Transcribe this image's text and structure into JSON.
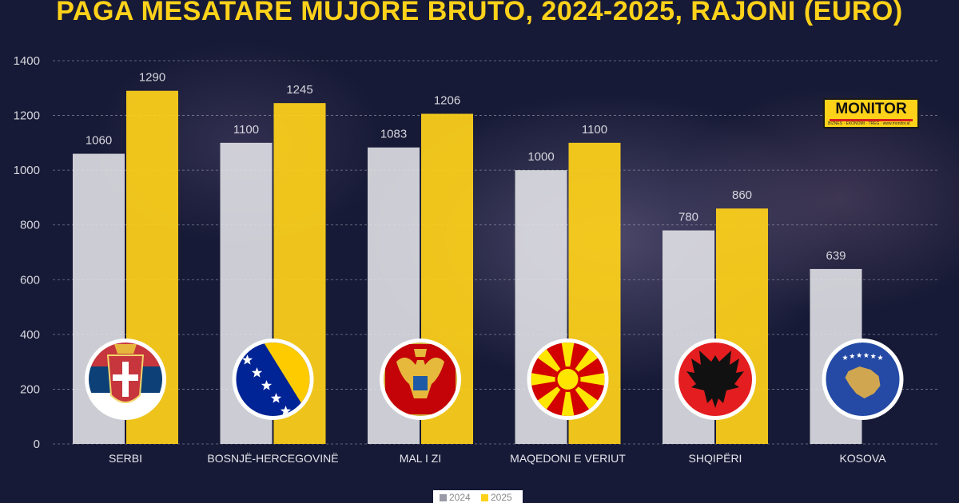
{
  "chart_data": {
    "type": "bar",
    "title": "PAGA MESATARE MUJORE BRUTO, 2024-2025, RAJONI (EURO)",
    "categories": [
      "SERBI",
      "BOSNJË-HERCEGOVINË",
      "MAL I ZI",
      "MAQEDONI E VERIUT",
      "SHQIPËRI",
      "KOSOVA"
    ],
    "series": [
      {
        "name": "2024",
        "color": "#e6e6ea",
        "values": [
          1060,
          1100,
          1083,
          1000,
          780,
          639
        ]
      },
      {
        "name": "2025",
        "color": "#ffd21a",
        "values": [
          1290,
          1245,
          1206,
          1100,
          860,
          null
        ]
      }
    ],
    "yticks": [
      0,
      200,
      400,
      600,
      800,
      1000,
      1200,
      1400
    ],
    "ylim": [
      0,
      1400
    ],
    "grid": true,
    "legend_position": "bottom-center",
    "flags": [
      "serbia-flag-icon",
      "bosnia-flag-icon",
      "montenegro-flag-icon",
      "north-macedonia-flag-icon",
      "albania-flag-icon",
      "kosovo-flag-icon"
    ]
  },
  "logo": {
    "name": "MONITOR",
    "tagline": "BIZNES · EKONOMI · TREG · www.monitor.al"
  }
}
